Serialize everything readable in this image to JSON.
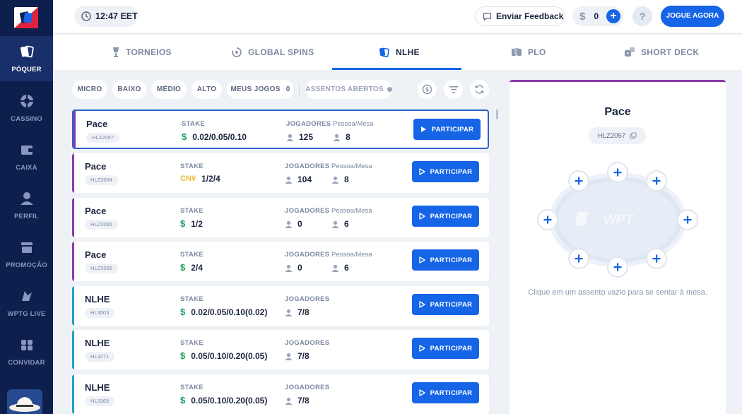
{
  "header": {
    "clock": "12:47 EET",
    "feedback_label": "Enviar Feedback",
    "balance": "0",
    "balance_currency_icon": "dollar-icon",
    "help": "?",
    "play_button": "JOGUE AGORA"
  },
  "sidebar": {
    "items": [
      {
        "label": "PÓQUER",
        "icon": "cards-icon",
        "active": true
      },
      {
        "label": "CASSINO",
        "icon": "chip-icon",
        "active": false
      },
      {
        "label": "CAIXA",
        "icon": "wallet-icon",
        "active": false
      },
      {
        "label": "PERFIL",
        "icon": "user-icon",
        "active": false
      },
      {
        "label": "PROMOÇÃO",
        "icon": "promo-icon",
        "active": false
      },
      {
        "label": "WPTG LIVE",
        "icon": "dragon-icon",
        "active": false
      },
      {
        "label": "CONVIDAR",
        "icon": "invite-icon",
        "active": false
      }
    ]
  },
  "tabs": [
    {
      "label": "TORNEIOS",
      "icon": "trophy-icon",
      "active": false
    },
    {
      "label": "GLOBAL SPINS",
      "icon": "spin-icon",
      "active": false
    },
    {
      "label": "NLHE",
      "icon": "cards-icon",
      "active": true
    },
    {
      "label": "PLO",
      "icon": "cards-icon",
      "active": false
    },
    {
      "label": "SHORT DECK",
      "icon": "dice-icon",
      "active": false
    }
  ],
  "filters": {
    "chips": [
      "MICRO",
      "BAIXO",
      "MÉDIO",
      "ALTO"
    ],
    "my_games": "MEUS JOGOS",
    "my_games_count": "0",
    "open_seats": "ASSENTOS ABERTOS"
  },
  "columns": {
    "stake": "STAKE",
    "players": "JOGADORES",
    "per_table": "Pessoa/Mesa"
  },
  "join_label": "PARTICIPAR",
  "rows": [
    {
      "name": "Pace",
      "code": "HLZ2057",
      "currency": "$",
      "stake": "0.02/0.05/0.10",
      "players": "125",
      "per_table": "8",
      "accent": "#8a3aa8",
      "selected": true
    },
    {
      "name": "Pace",
      "code": "HLZ2054",
      "currency": "CN¥",
      "stake": "1/2/4",
      "players": "104",
      "per_table": "8",
      "accent": "#8a3aa8",
      "selected": false
    },
    {
      "name": "Pace",
      "code": "HLZ2055",
      "currency": "$",
      "stake": "1/2",
      "players": "0",
      "per_table": "6",
      "accent": "#8a3aa8",
      "selected": false
    },
    {
      "name": "Pace",
      "code": "HLZ2056",
      "currency": "$",
      "stake": "2/4",
      "players": "0",
      "per_table": "6",
      "accent": "#8a3aa8",
      "selected": false
    },
    {
      "name": "NLHE",
      "code": "HL3503",
      "currency": "$",
      "stake": "0.02/0.05/0.10(0.02)",
      "players": "7/8",
      "per_table": "",
      "accent": "#1ea0c8",
      "selected": false
    },
    {
      "name": "NLHE",
      "code": "HL3271",
      "currency": "$",
      "stake": "0.05/0.10/0.20(0.05)",
      "players": "7/8",
      "per_table": "",
      "accent": "#1ea0c8",
      "selected": false
    },
    {
      "name": "NLHE",
      "code": "HL3365",
      "currency": "$",
      "stake": "0.05/0.10/0.20(0.05)",
      "players": "7/8",
      "per_table": "",
      "accent": "#1ea0c8",
      "selected": false
    }
  ],
  "panel": {
    "title": "Pace",
    "code": "HLZ2057",
    "table_logo": "WPT",
    "hint": "Clique em um assento vazio para se sentar à mesa.",
    "accent": "#8a3aa8"
  }
}
